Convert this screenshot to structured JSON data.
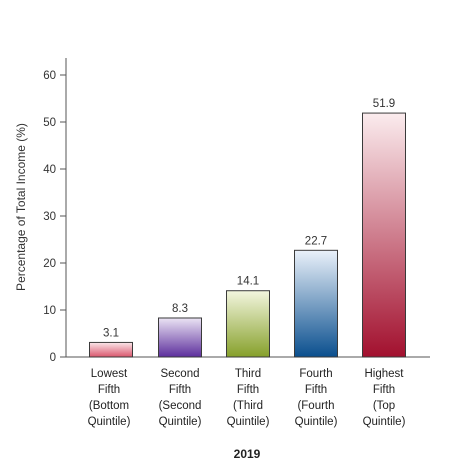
{
  "chart_data": {
    "type": "bar",
    "categories": [
      [
        "Lowest",
        "Fifth",
        "(Bottom",
        "Quintile)"
      ],
      [
        "Second",
        "Fifth",
        "(Second",
        "Quintile)"
      ],
      [
        "Third",
        "Fifth",
        "(Third",
        "Quintile)"
      ],
      [
        "Fourth",
        "Fifth",
        "(Fourth",
        "Quintile)"
      ],
      [
        "Highest",
        "Fifth",
        "(Top",
        "Quintile)"
      ]
    ],
    "values": [
      3.1,
      8.3,
      14.1,
      22.7,
      51.9
    ],
    "value_labels": [
      "3.1",
      "8.3",
      "14.1",
      "22.7",
      "51.9"
    ],
    "bar_colors": [
      {
        "light": "#fbe6ea",
        "dark": "#d9566c"
      },
      {
        "light": "#ebe4f4",
        "dark": "#5c2e9c"
      },
      {
        "light": "#f3f6df",
        "dark": "#86a02a"
      },
      {
        "light": "#eaf1fa",
        "dark": "#0a4f8e"
      },
      {
        "light": "#fbecee",
        "dark": "#a2102e"
      }
    ],
    "title": "",
    "xlabel": "2019",
    "ylabel": "Percentage of Total Income (%)",
    "ylim": [
      0,
      60
    ],
    "yticks": [
      0,
      10,
      20,
      30,
      40,
      50,
      60
    ],
    "grid": false
  }
}
